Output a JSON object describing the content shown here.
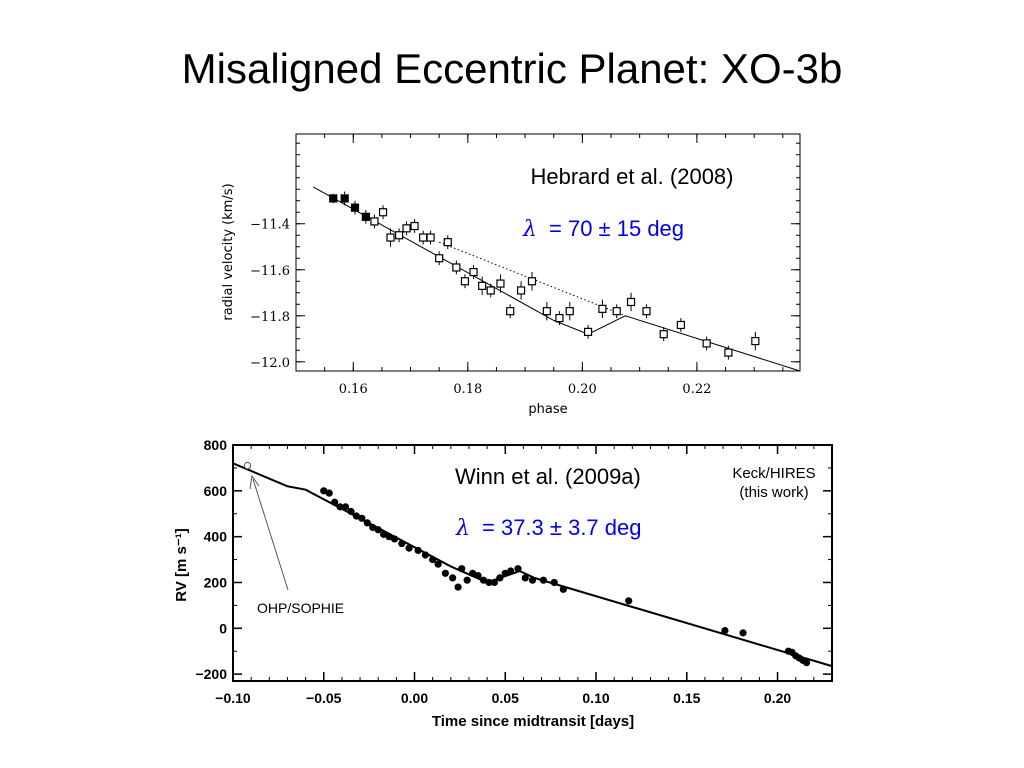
{
  "slide": {
    "title": "Misaligned Eccentric Planet: XO-3b"
  },
  "colors": {
    "annotation_blue": "#0000ee",
    "ink": "#000000"
  },
  "chart_data": [
    {
      "type": "scatter",
      "xlabel": "phase",
      "ylabel": "radial velocity (km/s)",
      "xlim": [
        0.15,
        0.238
      ],
      "ylim": [
        -12.04,
        -11.01
      ],
      "xticks": [
        0.16,
        0.18,
        0.2,
        0.22
      ],
      "xtick_labels": [
        "0.16",
        "0.18",
        "0.20",
        "0.22"
      ],
      "yticks": [
        -11.4,
        -11.6,
        -11.8,
        -12.0
      ],
      "ytick_labels": [
        "−11.4",
        "−11.6",
        "−11.8",
        "−12.0"
      ],
      "annotation_ref": "Hebrard et al. (2008)",
      "annotation_symbol": "λ",
      "annotation_value": "= 70 ± 15 deg",
      "points": [
        {
          "x": 0.1565,
          "y": -11.29,
          "err": 0.02,
          "filled": true
        },
        {
          "x": 0.1585,
          "y": -11.29,
          "err": 0.03,
          "filled": true
        },
        {
          "x": 0.1603,
          "y": -11.33,
          "err": 0.03,
          "filled": true
        },
        {
          "x": 0.1622,
          "y": -11.37,
          "err": 0.03,
          "filled": true
        },
        {
          "x": 0.1637,
          "y": -11.39,
          "err": 0.03,
          "filled": false
        },
        {
          "x": 0.1652,
          "y": -11.35,
          "err": 0.03,
          "filled": false
        },
        {
          "x": 0.1665,
          "y": -11.46,
          "err": 0.04,
          "filled": false
        },
        {
          "x": 0.168,
          "y": -11.45,
          "err": 0.03,
          "filled": false
        },
        {
          "x": 0.1693,
          "y": -11.42,
          "err": 0.03,
          "filled": false
        },
        {
          "x": 0.1707,
          "y": -11.41,
          "err": 0.03,
          "filled": false
        },
        {
          "x": 0.1722,
          "y": -11.46,
          "err": 0.03,
          "filled": false
        },
        {
          "x": 0.1735,
          "y": -11.46,
          "err": 0.03,
          "filled": false
        },
        {
          "x": 0.175,
          "y": -11.55,
          "err": 0.03,
          "filled": false
        },
        {
          "x": 0.1765,
          "y": -11.48,
          "err": 0.03,
          "filled": false
        },
        {
          "x": 0.178,
          "y": -11.59,
          "err": 0.03,
          "filled": false
        },
        {
          "x": 0.1795,
          "y": -11.65,
          "err": 0.03,
          "filled": false
        },
        {
          "x": 0.181,
          "y": -11.61,
          "err": 0.03,
          "filled": false
        },
        {
          "x": 0.1825,
          "y": -11.67,
          "err": 0.04,
          "filled": false
        },
        {
          "x": 0.184,
          "y": -11.69,
          "err": 0.03,
          "filled": false
        },
        {
          "x": 0.1857,
          "y": -11.66,
          "err": 0.04,
          "filled": false
        },
        {
          "x": 0.1874,
          "y": -11.78,
          "err": 0.03,
          "filled": false
        },
        {
          "x": 0.1893,
          "y": -11.69,
          "err": 0.04,
          "filled": false
        },
        {
          "x": 0.1912,
          "y": -11.65,
          "err": 0.04,
          "filled": false
        },
        {
          "x": 0.1938,
          "y": -11.78,
          "err": 0.04,
          "filled": false
        },
        {
          "x": 0.196,
          "y": -11.81,
          "err": 0.03,
          "filled": false
        },
        {
          "x": 0.1978,
          "y": -11.78,
          "err": 0.04,
          "filled": false
        },
        {
          "x": 0.201,
          "y": -11.87,
          "err": 0.03,
          "filled": false
        },
        {
          "x": 0.2035,
          "y": -11.77,
          "err": 0.04,
          "filled": false
        },
        {
          "x": 0.206,
          "y": -11.78,
          "err": 0.03,
          "filled": false
        },
        {
          "x": 0.2085,
          "y": -11.74,
          "err": 0.04,
          "filled": false
        },
        {
          "x": 0.2112,
          "y": -11.78,
          "err": 0.03,
          "filled": false
        },
        {
          "x": 0.2142,
          "y": -11.88,
          "err": 0.03,
          "filled": false
        },
        {
          "x": 0.2172,
          "y": -11.84,
          "err": 0.03,
          "filled": false
        },
        {
          "x": 0.2217,
          "y": -11.92,
          "err": 0.03,
          "filled": false
        },
        {
          "x": 0.2255,
          "y": -11.96,
          "err": 0.03,
          "filled": false
        },
        {
          "x": 0.2302,
          "y": -11.91,
          "err": 0.04,
          "filled": false
        }
      ],
      "model_curve": [
        [
          0.153,
          -11.24
        ],
        [
          0.195,
          -11.82
        ],
        [
          0.201,
          -11.88
        ],
        [
          0.2075,
          -11.8
        ],
        [
          0.238,
          -12.04
        ]
      ],
      "reference_dotted": [
        [
          0.175,
          -11.48
        ],
        [
          0.2075,
          -11.8
        ]
      ]
    },
    {
      "type": "scatter",
      "xlabel": "Time since midtransit [days]",
      "ylabel": "RV [m s⁻¹]",
      "xlim": [
        -0.1,
        0.23
      ],
      "ylim": [
        -230,
        800
      ],
      "xticks": [
        -0.1,
        -0.05,
        0.0,
        0.05,
        0.1,
        0.15,
        0.2
      ],
      "xtick_labels": [
        "−0.10",
        "−0.05",
        "0.00",
        "0.05",
        "0.10",
        "0.15",
        "0.20"
      ],
      "yticks": [
        800,
        600,
        400,
        200,
        0,
        -200
      ],
      "ytick_labels": [
        "800",
        "600",
        "400",
        "200",
        "0",
        "−200"
      ],
      "legend_line1": "Keck/HIRES",
      "legend_line2": "(this work)",
      "arrow_label": "OHP/SOPHIE",
      "annotation_ref": "Winn et al. (2009a)",
      "annotation_symbol": "λ",
      "annotation_value": "= 37.3 ± 3.7 deg",
      "open_point": {
        "x": -0.092,
        "y": 710
      },
      "points": [
        {
          "x": -0.05,
          "y": 600
        },
        {
          "x": -0.047,
          "y": 590
        },
        {
          "x": -0.044,
          "y": 550
        },
        {
          "x": -0.041,
          "y": 530
        },
        {
          "x": -0.038,
          "y": 530
        },
        {
          "x": -0.035,
          "y": 510
        },
        {
          "x": -0.032,
          "y": 490
        },
        {
          "x": -0.029,
          "y": 480
        },
        {
          "x": -0.026,
          "y": 460
        },
        {
          "x": -0.023,
          "y": 440
        },
        {
          "x": -0.02,
          "y": 430
        },
        {
          "x": -0.017,
          "y": 410
        },
        {
          "x": -0.014,
          "y": 400
        },
        {
          "x": -0.011,
          "y": 390
        },
        {
          "x": -0.007,
          "y": 370
        },
        {
          "x": -0.003,
          "y": 350
        },
        {
          "x": 0.002,
          "y": 340
        },
        {
          "x": 0.006,
          "y": 320
        },
        {
          "x": 0.01,
          "y": 300
        },
        {
          "x": 0.013,
          "y": 280
        },
        {
          "x": 0.017,
          "y": 240
        },
        {
          "x": 0.021,
          "y": 220
        },
        {
          "x": 0.024,
          "y": 180
        },
        {
          "x": 0.026,
          "y": 260
        },
        {
          "x": 0.029,
          "y": 210
        },
        {
          "x": 0.032,
          "y": 240
        },
        {
          "x": 0.035,
          "y": 230
        },
        {
          "x": 0.038,
          "y": 210
        },
        {
          "x": 0.041,
          "y": 200
        },
        {
          "x": 0.044,
          "y": 200
        },
        {
          "x": 0.047,
          "y": 220
        },
        {
          "x": 0.05,
          "y": 240
        },
        {
          "x": 0.053,
          "y": 250
        },
        {
          "x": 0.057,
          "y": 260
        },
        {
          "x": 0.061,
          "y": 220
        },
        {
          "x": 0.065,
          "y": 210
        },
        {
          "x": 0.071,
          "y": 210
        },
        {
          "x": 0.077,
          "y": 200
        },
        {
          "x": 0.082,
          "y": 170
        },
        {
          "x": 0.118,
          "y": 120
        },
        {
          "x": 0.171,
          "y": -10
        },
        {
          "x": 0.181,
          "y": -20
        },
        {
          "x": 0.206,
          "y": -100
        },
        {
          "x": 0.208,
          "y": -105
        },
        {
          "x": 0.21,
          "y": -120
        },
        {
          "x": 0.212,
          "y": -130
        },
        {
          "x": 0.214,
          "y": -140
        },
        {
          "x": 0.216,
          "y": -150
        }
      ],
      "model_curve": [
        [
          -0.1,
          720
        ],
        [
          -0.07,
          620
        ],
        [
          -0.06,
          605
        ],
        [
          0.02,
          270
        ],
        [
          0.04,
          200
        ],
        [
          0.058,
          250
        ],
        [
          0.066,
          220
        ],
        [
          0.23,
          -165
        ]
      ]
    }
  ]
}
